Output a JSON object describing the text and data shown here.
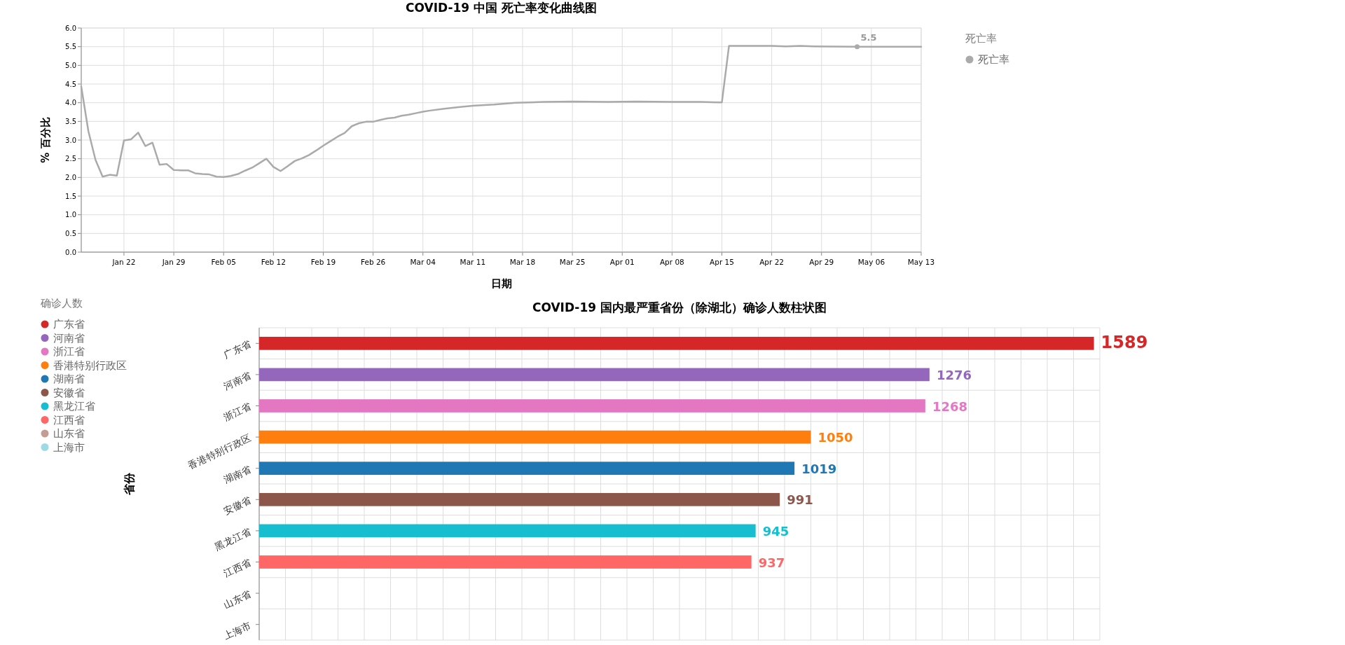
{
  "chart_data": [
    {
      "type": "line",
      "title": "COVID-19 中国 死亡率变化曲线图",
      "xlabel": "日期",
      "ylabel": "% 百分比",
      "legend_title": "死亡率",
      "legend": "top right",
      "grid": true,
      "marker": "none",
      "xlim": [
        "--01-16",
        "--05-13"
      ],
      "ylim": [
        0,
        6
      ],
      "xticks": [
        {
          "value": "--01-22",
          "label": "Jan 22"
        },
        {
          "value": "--01-29",
          "label": "Jan 29"
        },
        {
          "value": "--02-05",
          "label": "Feb 05"
        },
        {
          "value": "--02-12",
          "label": "Feb 12"
        },
        {
          "value": "--02-19",
          "label": "Feb 19"
        },
        {
          "value": "--02-26",
          "label": "Feb 26"
        },
        {
          "value": "--03-04",
          "label": "Mar 04"
        },
        {
          "value": "--03-11",
          "label": "Mar 11"
        },
        {
          "value": "--03-18",
          "label": "Mar 18"
        },
        {
          "value": "--03-25",
          "label": "Mar 25"
        },
        {
          "value": "--04-01",
          "label": "Apr 01"
        },
        {
          "value": "--04-08",
          "label": "Apr 08"
        },
        {
          "value": "--04-15",
          "label": "Apr 15"
        },
        {
          "value": "--04-22",
          "label": "Apr 22"
        },
        {
          "value": "--04-29",
          "label": "Apr 29"
        },
        {
          "value": "--05-06",
          "label": "May 06"
        },
        {
          "value": "--05-13",
          "label": "May 13"
        }
      ],
      "yticks": [
        {
          "value": 0,
          "label": "0.0"
        },
        {
          "value": 0.5,
          "label": "0.5"
        },
        {
          "value": 1,
          "label": "1.0"
        },
        {
          "value": 1.5,
          "label": "1.5"
        },
        {
          "value": 2,
          "label": "2.0"
        },
        {
          "value": 2.5,
          "label": "2.5"
        },
        {
          "value": 3,
          "label": "3.0"
        },
        {
          "value": 3.5,
          "label": "3.5"
        },
        {
          "value": 4,
          "label": "4.0"
        },
        {
          "value": 4.5,
          "label": "4.5"
        },
        {
          "value": 5,
          "label": "5.0"
        },
        {
          "value": 5.5,
          "label": "5.5"
        },
        {
          "value": 6,
          "label": "6.0"
        }
      ],
      "x": [
        "--01-16",
        "--01-17",
        "--01-18",
        "--01-19",
        "--01-20",
        "--01-21",
        "--01-22",
        "--01-23",
        "--01-24",
        "--01-25",
        "--01-26",
        "--01-27",
        "--01-28",
        "--01-29",
        "--01-30",
        "--01-31",
        "--02-01",
        "--02-02",
        "--02-03",
        "--02-04",
        "--02-05",
        "--02-06",
        "--02-07",
        "--02-08",
        "--02-09",
        "--02-10",
        "--02-11",
        "--02-12",
        "--02-13",
        "--02-14",
        "--02-15",
        "--02-16",
        "--02-17",
        "--02-18",
        "--02-19",
        "--02-20",
        "--02-21",
        "--02-22",
        "--02-23",
        "--02-24",
        "--02-25",
        "--02-26",
        "--02-27",
        "--02-28",
        "--02-29",
        "--03-01",
        "--03-02",
        "--03-03",
        "--03-04",
        "--03-05",
        "--03-07",
        "--03-09",
        "--03-11",
        "--03-14",
        "--03-17",
        "--03-21",
        "--03-25",
        "--03-30",
        "--04-03",
        "--04-08",
        "--04-12",
        "--04-15",
        "--04-16",
        "--04-22",
        "--04-24",
        "--04-26",
        "--04-28",
        "--05-04",
        "--05-13"
      ],
      "series": [
        {
          "name": "死亡率",
          "color": "#aaaaaa",
          "values": [
            4.43,
            3.24,
            2.47,
            2.02,
            2.07,
            2.05,
            2.99,
            3.02,
            3.2,
            2.84,
            2.93,
            2.34,
            2.36,
            2.2,
            2.19,
            2.19,
            2.11,
            2.09,
            2.08,
            2.02,
            2.01,
            2.04,
            2.09,
            2.18,
            2.26,
            2.38,
            2.5,
            2.28,
            2.17,
            2.3,
            2.44,
            2.51,
            2.6,
            2.72,
            2.85,
            2.97,
            3.09,
            3.19,
            3.37,
            3.45,
            3.49,
            3.49,
            3.54,
            3.58,
            3.6,
            3.65,
            3.68,
            3.72,
            3.76,
            3.79,
            3.84,
            3.88,
            3.92,
            3.95,
            4.0,
            4.02,
            4.03,
            4.02,
            4.03,
            4.02,
            4.02,
            4.01,
            5.52,
            5.52,
            5.51,
            5.52,
            5.51,
            5.5,
            5.5
          ]
        }
      ],
      "annotations": [
        {
          "text": "5.5",
          "x": "--05-04",
          "y": 5.5
        }
      ]
    },
    {
      "type": "bar",
      "orientation": "horizontal",
      "title": "COVID-19 国内最严重省份（除湖北）确诊人数柱状图",
      "ylabel": "省份",
      "legend_title": "确诊人数",
      "legend": "left",
      "grid": true,
      "tick_labels": "y",
      "data_labels": true,
      "categories": [
        "广东省",
        "河南省",
        "浙江省",
        "香港特别行政区",
        "湖南省",
        "安徽省",
        "黑龙江省",
        "江西省",
        "山东省",
        "上海市"
      ],
      "series": [
        {
          "name": "广东省",
          "color": "#d62728",
          "values": [
            1589,
            null,
            null,
            null,
            null,
            null,
            null,
            null,
            null,
            null
          ]
        },
        {
          "name": "河南省",
          "color": "#9467bd",
          "values": [
            null,
            1276,
            null,
            null,
            null,
            null,
            null,
            null,
            null,
            null
          ]
        },
        {
          "name": "浙江省",
          "color": "#e377c2",
          "values": [
            null,
            null,
            1268,
            null,
            null,
            null,
            null,
            null,
            null,
            null
          ]
        },
        {
          "name": "香港特别行政区",
          "color": "#ff7f0e",
          "values": [
            null,
            null,
            null,
            1050,
            null,
            null,
            null,
            null,
            null,
            null
          ]
        },
        {
          "name": "湖南省",
          "color": "#1f77b4",
          "values": [
            null,
            null,
            null,
            null,
            1019,
            null,
            null,
            null,
            null,
            null
          ]
        },
        {
          "name": "安徽省",
          "color": "#8c564b",
          "values": [
            null,
            null,
            null,
            null,
            null,
            991,
            null,
            null,
            null,
            null
          ]
        },
        {
          "name": "黑龙江省",
          "color": "#17becf",
          "values": [
            null,
            null,
            null,
            null,
            null,
            null,
            945,
            null,
            null,
            null
          ]
        },
        {
          "name": "江西省",
          "color": "#ff6666",
          "values": [
            null,
            null,
            null,
            null,
            null,
            null,
            null,
            937,
            null,
            null
          ]
        },
        {
          "name": "山东省",
          "color": "#c49c94",
          "values": [
            null,
            null,
            null,
            null,
            null,
            null,
            null,
            null,
            null,
            null
          ]
        },
        {
          "name": "上海市",
          "color": "#9edae5",
          "values": [
            null,
            null,
            null,
            null,
            null,
            null,
            null,
            null,
            null,
            null
          ]
        }
      ]
    }
  ]
}
